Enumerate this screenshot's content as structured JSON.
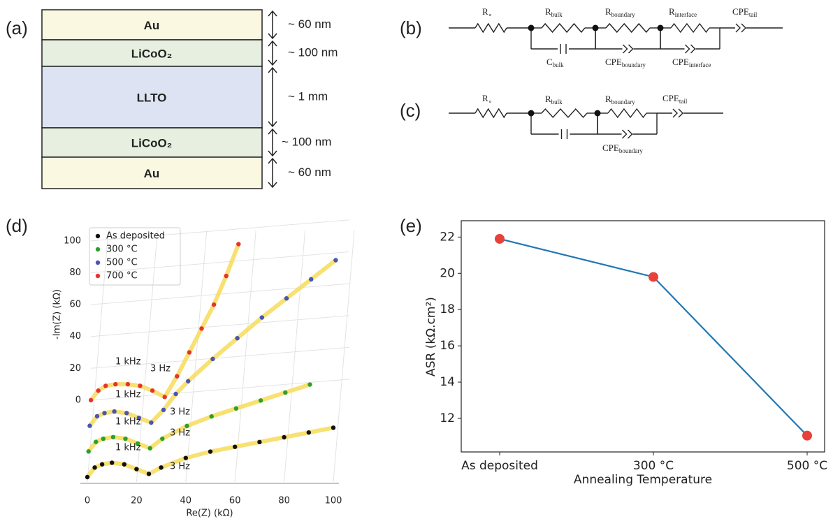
{
  "panels": [
    {
      "label": "(a)",
      "layers": [
        {
          "name": "Au",
          "thickness": "~ 60 nm"
        },
        {
          "name": "LiCoO₂",
          "thickness": "~ 100 nm"
        },
        {
          "name": "LLTO",
          "thickness": "~ 1 mm"
        },
        {
          "name": "LiCoO₂",
          "thickness": "~ 100 nm"
        },
        {
          "name": "Au",
          "thickness": "~ 60 nm"
        }
      ]
    },
    {
      "label": "(b)",
      "labels": [
        {
          "main": "R",
          "sub": "∘"
        },
        {
          "main": "R",
          "sub": "bulk"
        },
        {
          "main": "R",
          "sub": "boundary"
        },
        {
          "main": "R",
          "sub": "interface"
        },
        {
          "main": "CPE",
          "sub": "tail"
        },
        {
          "main": "C",
          "sub": "bulk"
        },
        {
          "main": "CPE",
          "sub": "boundary"
        },
        {
          "main": "CPE",
          "sub": "interface"
        }
      ]
    },
    {
      "label": "(c)",
      "labels": [
        {
          "main": "R",
          "sub": "∘"
        },
        {
          "main": "R",
          "sub": "bulk"
        },
        {
          "main": "R",
          "sub": "boundary"
        },
        {
          "main": "CPE",
          "sub": "tail"
        },
        {
          "main": "CPE",
          "sub": "boundary"
        }
      ]
    }
  ],
  "chart_data": [
    {
      "type": "scatter3d",
      "panel": "(d)",
      "xlabel": "Re(Z) (kΩ)",
      "ylabel": "-Im(Z) (kΩ)",
      "xlim": [
        0,
        100
      ],
      "xticks": [
        0,
        20,
        40,
        60,
        80,
        100
      ],
      "ylim": [
        0,
        100
      ],
      "yticks": [
        0,
        20,
        40,
        60,
        80,
        100
      ],
      "fit_color": "#f7dc5a",
      "series": [
        {
          "name": "As deposited",
          "color": "#111111",
          "x": [
            0,
            3,
            6,
            10,
            15,
            20,
            25,
            30,
            40,
            50,
            60,
            70,
            80,
            90,
            100
          ],
          "values": [
            0,
            6,
            8,
            9,
            8,
            5,
            2,
            6,
            12,
            16,
            19,
            22,
            25,
            28,
            31
          ]
        },
        {
          "name": "300 °C",
          "color": "#2ca02c",
          "x": [
            0,
            3,
            6,
            10,
            15,
            20,
            25,
            30,
            40,
            50,
            60,
            70,
            80,
            90
          ],
          "values": [
            0,
            6,
            8,
            9,
            8,
            5,
            2,
            8,
            16,
            22,
            27,
            32,
            37,
            42
          ]
        },
        {
          "name": "500 °C",
          "color": "#4a55b0",
          "x": [
            0,
            3,
            6,
            10,
            15,
            20,
            25,
            30,
            35,
            40,
            50,
            60,
            70,
            80,
            90,
            100
          ],
          "values": [
            0,
            6,
            8,
            9,
            8,
            5,
            2,
            10,
            20,
            28,
            42,
            55,
            68,
            80,
            92,
            104
          ]
        },
        {
          "name": "700 °C",
          "color": "#e8322f",
          "x": [
            0,
            3,
            6,
            10,
            15,
            20,
            25,
            30,
            35,
            40,
            45,
            50,
            55,
            60
          ],
          "values": [
            0,
            6,
            9,
            10,
            10,
            9,
            6,
            2,
            15,
            30,
            45,
            60,
            78,
            98
          ]
        }
      ],
      "annotations": [
        "1 kHz",
        "3 Hz",
        "1 kHz",
        "3 Hz",
        "1 kHz",
        "3 Hz",
        "1 kHz",
        "3 Hz"
      ]
    },
    {
      "type": "line",
      "panel": "(e)",
      "xlabel": "Annealing Temperature",
      "ylabel": "ASR (kΩ.cm²)",
      "categories": [
        "As deposited",
        "300 °C",
        "500 °C"
      ],
      "values": [
        21.9,
        19.8,
        11.05
      ],
      "color": "#1f77b4",
      "marker_color": "#e8413a",
      "ylim": [
        10.15,
        22.9
      ],
      "yticks": [
        12,
        14,
        16,
        18,
        20,
        22
      ]
    }
  ]
}
